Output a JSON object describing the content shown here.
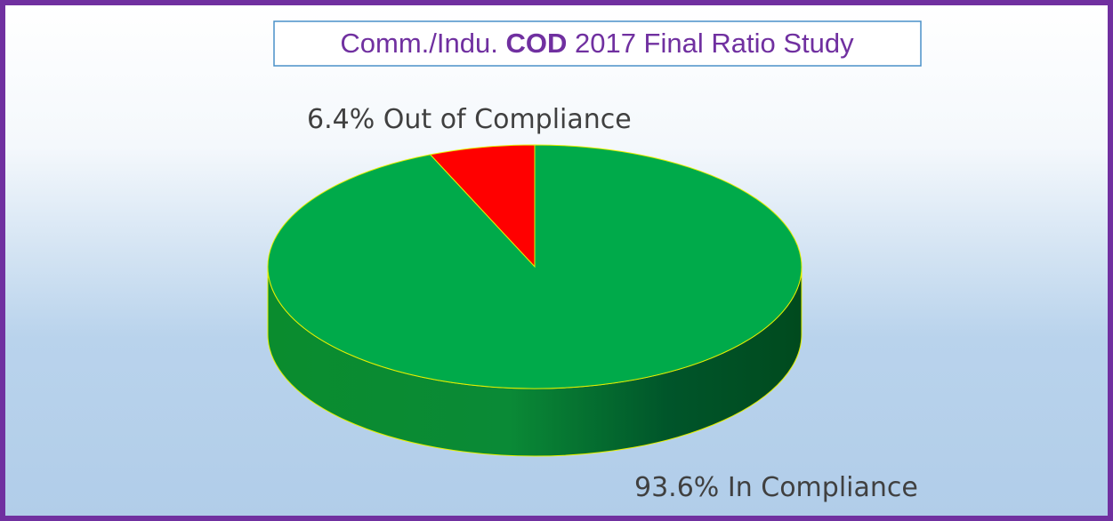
{
  "chart_data": {
    "type": "pie3d",
    "title": [
      "Comm./Indu.",
      "COD",
      "2017 Final Ratio Study"
    ],
    "categories": [
      "Out of Compliance",
      "In Compliance"
    ],
    "values": [
      6.4,
      93.6
    ],
    "value_labels": [
      "6.4%",
      "93.6%"
    ],
    "colors": [
      "#ff0000",
      "#00aa4a"
    ]
  }
}
